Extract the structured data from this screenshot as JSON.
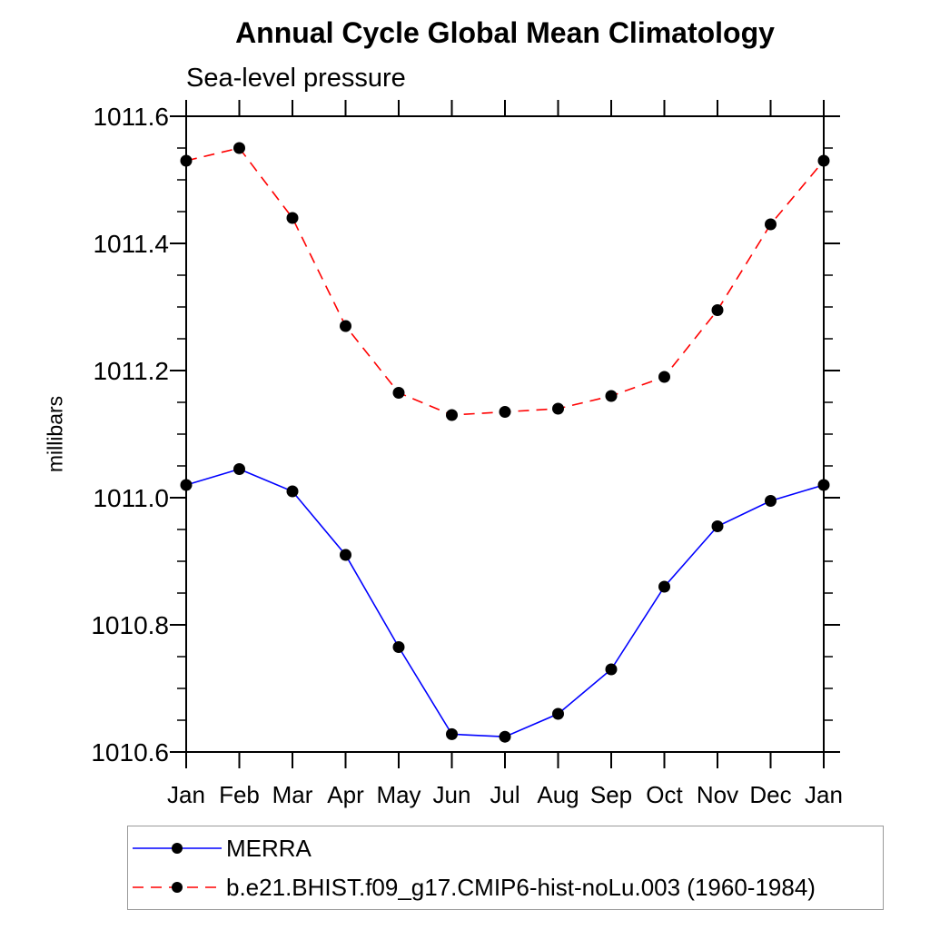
{
  "page": {
    "background": "#ffffff"
  },
  "chart_data": {
    "type": "line",
    "title": "Annual Cycle Global Mean Climatology",
    "subtitle": "Sea-level pressure",
    "ylabel": "millibars",
    "xlabel": "",
    "categories": [
      "Jan",
      "Feb",
      "Mar",
      "Apr",
      "May",
      "Jun",
      "Jul",
      "Aug",
      "Sep",
      "Oct",
      "Nov",
      "Dec",
      "Jan"
    ],
    "ylim": [
      1010.6,
      1011.6
    ],
    "y_major_tick_step": 0.2,
    "y_minor_tick_step": 0.05,
    "y_tick_labels": [
      "1010.6",
      "1010.8",
      "1011.0",
      "1011.2",
      "1011.4",
      "1011.6"
    ],
    "y_tick_values": [
      1010.6,
      1010.8,
      1011.0,
      1011.2,
      1011.4,
      1011.6
    ],
    "grid": false,
    "axis_color": "#000000",
    "marker_color": "#000000",
    "legend_position": "bottom-left-box",
    "series": [
      {
        "name": "MERRA",
        "color": "#0000ff",
        "style": "solid",
        "marker": "circle",
        "values": [
          1011.02,
          1011.045,
          1011.01,
          1010.91,
          1010.765,
          1010.628,
          1010.624,
          1010.66,
          1010.73,
          1010.86,
          1010.955,
          1010.995,
          1011.02
        ]
      },
      {
        "name": "b.e21.BHIST.f09_g17.CMIP6-hist-noLu.003 (1960-1984)",
        "color": "#ff0000",
        "style": "dashed",
        "marker": "circle",
        "values": [
          1011.53,
          1011.55,
          1011.44,
          1011.27,
          1011.165,
          1011.13,
          1011.135,
          1011.14,
          1011.16,
          1011.19,
          1011.295,
          1011.43,
          1011.53
        ]
      }
    ]
  }
}
